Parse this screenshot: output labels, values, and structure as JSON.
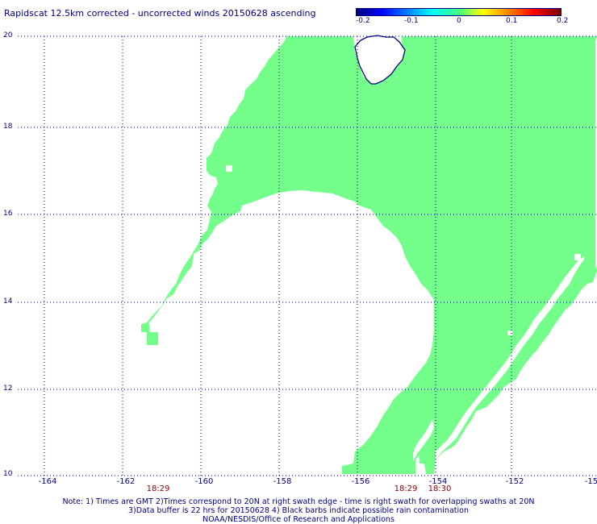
{
  "title": "Rapidscat 12.5km corrected - uncorrected winds 20150628 ascending",
  "colorbar": {
    "ticks": [
      "-0.2",
      "-0.1",
      "0",
      "0.1",
      "0.2"
    ],
    "colors": [
      "#00007a",
      "#0000ff",
      "#0080ff",
      "#00ffff",
      "#40ff80",
      "#ffff00",
      "#ff8000",
      "#ff0000",
      "#7a0000"
    ]
  },
  "map": {
    "lat_labels": [
      "20",
      "18",
      "16",
      "14",
      "12",
      "10"
    ],
    "lon_labels": [
      "-164",
      "-162",
      "-160",
      "-158",
      "-156",
      "-154",
      "-152",
      "-15"
    ],
    "swath_color": "#73ff8a",
    "grid_color": "#000080",
    "coastline_color": "#000080"
  },
  "times": [
    "18:29",
    "18:29",
    "18:30"
  ],
  "notes": [
    "Note: 1) Times are GMT 2)Times correspond to 20N at right swath edge - time is right swath for overlapping swaths at 20N",
    "3)Data buffer is 22 hrs for 20150628 4) Black barbs indicate possible rain contamination",
    "NOAA/NESDIS/Office of Research and Applications"
  ]
}
